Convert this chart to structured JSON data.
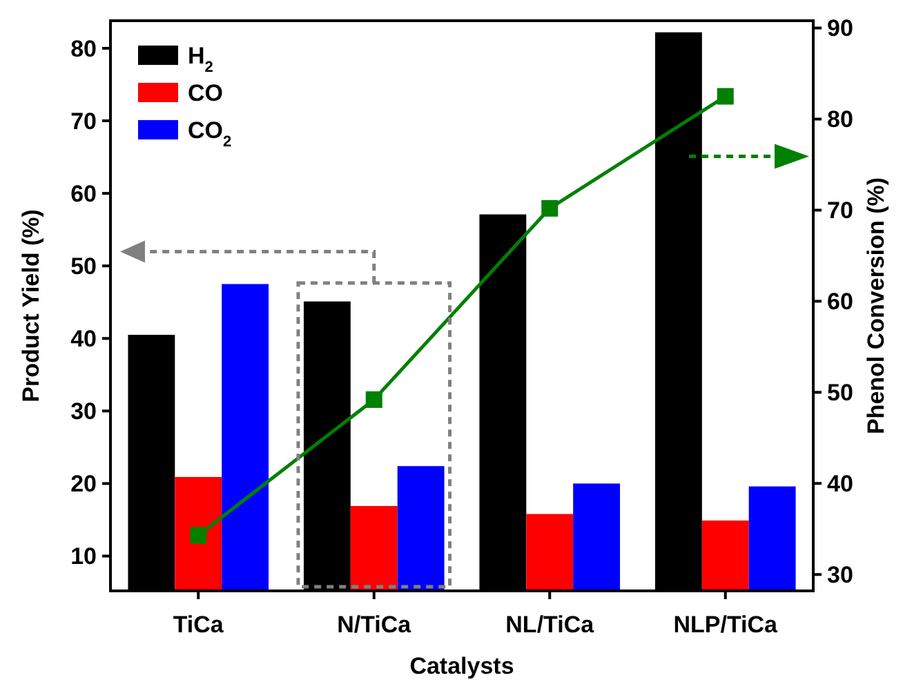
{
  "chart_data": {
    "type": "bar",
    "xlabel": "Catalysts",
    "ylabel": "Product Yield (%)",
    "y2label": "Phenol Conversion (%)",
    "categories": [
      "TiCa",
      "N/TiCa",
      "NL/TiCa",
      "NLP/TiCa"
    ],
    "series": [
      {
        "name": "H$_{2}$",
        "color": "#000000",
        "values": [
          40.5,
          45.1,
          57.1,
          82.2
        ]
      },
      {
        "name": "CO",
        "color": "#ff0000",
        "values": [
          20.9,
          16.9,
          15.8,
          14.9
        ]
      },
      {
        "name": "CO$_{2}$",
        "color": "#0000ff",
        "values": [
          47.5,
          22.4,
          20.0,
          19.6
        ]
      },
      {
        "type": "line",
        "axis": "y2",
        "color": "#008000",
        "marker": "square",
        "values": [
          34.3,
          49.2,
          70.2,
          82.5
        ]
      }
    ],
    "ylim": [
      5.2,
      83.8
    ],
    "yticks": [
      10,
      20,
      30,
      40,
      50,
      60,
      70,
      80
    ],
    "y2lim": [
      28.2,
      90.8
    ],
    "y2ticks": [
      30,
      40,
      50,
      60,
      70,
      80,
      90
    ],
    "grid": false,
    "legend": "top left"
  }
}
